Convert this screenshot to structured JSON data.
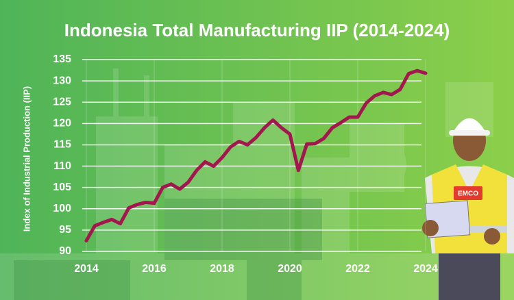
{
  "chart_data": {
    "type": "line",
    "title": "Indonesia Total Manufacturing IIP (2014-2024)",
    "y_label": "Index of Industrial Production (IIP)",
    "x": [
      2014,
      2014.25,
      2014.5,
      2014.75,
      2015,
      2015.25,
      2015.5,
      2015.75,
      2016,
      2016.25,
      2016.5,
      2016.75,
      2017,
      2017.25,
      2017.5,
      2017.75,
      2018,
      2018.25,
      2018.5,
      2018.75,
      2019,
      2019.25,
      2019.5,
      2019.75,
      2020,
      2020.25,
      2020.5,
      2020.75,
      2021,
      2021.25,
      2021.5,
      2021.75,
      2022,
      2022.25,
      2022.5,
      2022.75,
      2023,
      2023.25,
      2023.5,
      2023.75,
      2024
    ],
    "series": [
      {
        "name": "Total Manufacturing IIP",
        "color": "#a3174f",
        "values": [
          92.5,
          96,
          96.8,
          97.5,
          96.5,
          100.2,
          101,
          101.5,
          101.3,
          105,
          105.8,
          104.6,
          106.2,
          109,
          111,
          110,
          112,
          114.5,
          115.8,
          115,
          116.7,
          119,
          120.8,
          119,
          117.5,
          109,
          115.2,
          115.3,
          116.5,
          119,
          120.2,
          121.5,
          121.5,
          124.8,
          126.5,
          127.3,
          126.8,
          128,
          131.7,
          132.4,
          131.8
        ]
      }
    ],
    "xlim": [
      2014,
      2024
    ],
    "xticks": [
      2014,
      2016,
      2018,
      2020,
      2022,
      2024
    ],
    "ylim": [
      90,
      135
    ],
    "yticks": [
      90,
      95,
      100,
      105,
      110,
      115,
      120,
      125,
      130,
      135
    ],
    "grid": true
  },
  "badge": "EMCO"
}
